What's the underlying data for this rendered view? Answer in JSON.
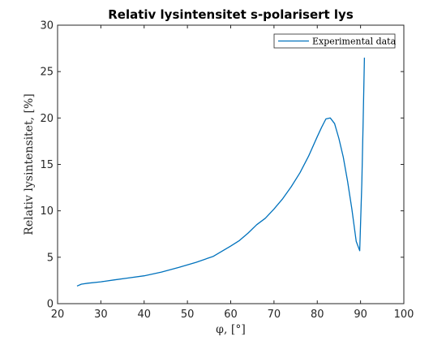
{
  "chart_data": {
    "type": "line",
    "title": "Relativ lysintensitet s-polarisert lys",
    "xlabel": "φ, [°]",
    "ylabel": "Relativ lysintensitet, [%]",
    "xlim": [
      20,
      100
    ],
    "ylim": [
      0,
      30
    ],
    "xticks": [
      20,
      30,
      40,
      50,
      60,
      70,
      80,
      90,
      100
    ],
    "yticks": [
      0,
      5,
      10,
      15,
      20,
      25,
      30
    ],
    "grid": false,
    "legend_position": "top-right",
    "series_color": "#0072BD",
    "series": [
      {
        "name": "Experimental data",
        "x": [
          24.5,
          25.5,
          27,
          30,
          33,
          36,
          40,
          44,
          48,
          52,
          56,
          60,
          62,
          64,
          66,
          68,
          70,
          72,
          74,
          76,
          78,
          80,
          81,
          82,
          83,
          84,
          85,
          86,
          87,
          88,
          89,
          89.8,
          90.3,
          90.6,
          90.9
        ],
        "y": [
          1.9,
          2.1,
          2.2,
          2.35,
          2.55,
          2.75,
          3.0,
          3.4,
          3.9,
          4.45,
          5.1,
          6.2,
          6.8,
          7.6,
          8.5,
          9.2,
          10.2,
          11.3,
          12.6,
          14.1,
          15.9,
          18.0,
          19.0,
          19.9,
          20.0,
          19.4,
          17.8,
          15.8,
          13.2,
          10.2,
          6.7,
          5.7,
          13.0,
          19.5,
          26.5
        ]
      }
    ]
  }
}
